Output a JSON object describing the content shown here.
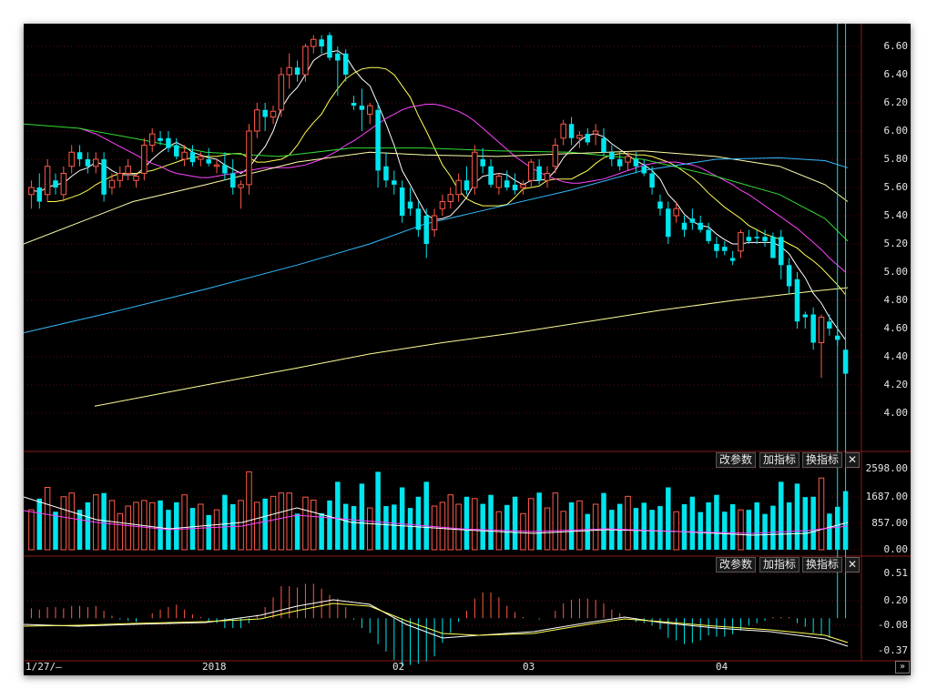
{
  "toolbar": {
    "modify_params": "改参数",
    "add_indicator": "加指标",
    "change_indicator": "换指标",
    "close_symbol": "✕"
  },
  "colors": {
    "up": "#ff5a4a",
    "down": "#00e5ee",
    "ma5": "#ffffff",
    "ma10": "#ffff55",
    "ma20": "#ff44ff",
    "ma30": "#33dd33",
    "ma60": "#ffffaa",
    "ma120": "#33bbff",
    "ma250": "#ffff99"
  },
  "chart_data": [
    {
      "type": "candlestick",
      "price_axis": {
        "ticks": [
          "6.60",
          "6.40",
          "6.20",
          "6.00",
          "5.80",
          "5.60",
          "5.40",
          "5.20",
          "5.00",
          "4.80",
          "4.60",
          "4.40",
          "4.20",
          "4.00"
        ],
        "ylim": [
          3.75,
          6.7
        ]
      },
      "x_labels": [
        "1/27/—",
        "2018",
        "02",
        "03",
        "04"
      ],
      "candles_ohlc": [
        [
          5.55,
          5.65,
          5.45,
          5.6
        ],
        [
          5.6,
          5.7,
          5.45,
          5.5
        ],
        [
          5.55,
          5.8,
          5.5,
          5.75
        ],
        [
          5.65,
          5.7,
          5.55,
          5.6
        ],
        [
          5.55,
          5.75,
          5.5,
          5.7
        ],
        [
          5.75,
          5.9,
          5.7,
          5.85
        ],
        [
          5.85,
          5.9,
          5.75,
          5.8
        ],
        [
          5.8,
          5.85,
          5.7,
          5.75
        ],
        [
          5.75,
          5.85,
          5.7,
          5.8
        ],
        [
          5.8,
          5.85,
          5.5,
          5.55
        ],
        [
          5.6,
          5.7,
          5.55,
          5.65
        ],
        [
          5.65,
          5.75,
          5.6,
          5.7
        ],
        [
          5.7,
          5.8,
          5.65,
          5.75
        ],
        [
          5.65,
          5.7,
          5.6,
          5.68
        ],
        [
          5.7,
          5.95,
          5.65,
          5.9
        ],
        [
          5.9,
          6.02,
          5.85,
          5.98
        ],
        [
          5.95,
          6.0,
          5.9,
          5.93
        ],
        [
          5.95,
          6.0,
          5.85,
          5.88
        ],
        [
          5.9,
          5.95,
          5.8,
          5.82
        ],
        [
          5.8,
          5.9,
          5.75,
          5.85
        ],
        [
          5.85,
          5.9,
          5.75,
          5.78
        ],
        [
          5.8,
          5.85,
          5.75,
          5.82
        ],
        [
          5.8,
          5.88,
          5.75,
          5.77
        ],
        [
          5.75,
          5.8,
          5.7,
          5.76
        ],
        [
          5.76,
          5.85,
          5.65,
          5.7
        ],
        [
          5.7,
          5.8,
          5.55,
          5.6
        ],
        [
          5.6,
          5.65,
          5.45,
          5.62
        ],
        [
          5.62,
          6.05,
          5.55,
          6.0
        ],
        [
          6.0,
          6.2,
          5.95,
          6.15
        ],
        [
          6.15,
          6.2,
          6.0,
          6.1
        ],
        [
          6.1,
          6.18,
          6.05,
          6.14
        ],
        [
          6.15,
          6.45,
          6.1,
          6.4
        ],
        [
          6.4,
          6.55,
          6.3,
          6.45
        ],
        [
          6.45,
          6.5,
          6.35,
          6.4
        ],
        [
          6.4,
          6.62,
          6.35,
          6.6
        ],
        [
          6.6,
          6.68,
          6.55,
          6.65
        ],
        [
          6.65,
          6.68,
          6.55,
          6.6
        ],
        [
          6.68,
          6.7,
          6.5,
          6.52
        ],
        [
          6.55,
          6.6,
          6.25,
          6.5
        ],
        [
          6.55,
          6.58,
          6.35,
          6.4
        ],
        [
          6.2,
          6.25,
          6.15,
          6.18
        ],
        [
          6.18,
          6.3,
          6.0,
          6.15
        ],
        [
          6.12,
          6.2,
          6.05,
          6.18
        ],
        [
          6.15,
          6.2,
          5.6,
          5.72
        ],
        [
          5.75,
          5.85,
          5.6,
          5.65
        ],
        [
          5.65,
          5.72,
          5.55,
          5.62
        ],
        [
          5.6,
          5.65,
          5.35,
          5.4
        ],
        [
          5.5,
          5.6,
          5.4,
          5.45
        ],
        [
          5.45,
          5.5,
          5.25,
          5.3
        ],
        [
          5.4,
          5.45,
          5.1,
          5.2
        ],
        [
          5.3,
          5.45,
          5.25,
          5.4
        ],
        [
          5.45,
          5.55,
          5.4,
          5.5
        ],
        [
          5.5,
          5.6,
          5.45,
          5.55
        ],
        [
          5.55,
          5.7,
          5.5,
          5.65
        ],
        [
          5.65,
          5.75,
          5.55,
          5.58
        ],
        [
          5.6,
          5.9,
          5.55,
          5.85
        ],
        [
          5.8,
          5.88,
          5.7,
          5.75
        ],
        [
          5.75,
          5.8,
          5.6,
          5.62
        ],
        [
          5.6,
          5.7,
          5.55,
          5.68
        ],
        [
          5.65,
          5.72,
          5.58,
          5.6
        ],
        [
          5.62,
          5.7,
          5.55,
          5.58
        ],
        [
          5.6,
          5.65,
          5.55,
          5.62
        ],
        [
          5.65,
          5.8,
          5.6,
          5.78
        ],
        [
          5.75,
          5.8,
          5.62,
          5.65
        ],
        [
          5.65,
          5.75,
          5.6,
          5.7
        ],
        [
          5.75,
          5.95,
          5.7,
          5.9
        ],
        [
          5.95,
          6.08,
          5.9,
          6.05
        ],
        [
          6.05,
          6.1,
          5.9,
          5.95
        ],
        [
          5.95,
          6.0,
          5.88,
          5.97
        ],
        [
          5.98,
          6.02,
          5.9,
          5.92
        ],
        [
          5.98,
          6.05,
          5.9,
          6.0
        ],
        [
          5.95,
          6.02,
          5.82,
          5.85
        ],
        [
          5.85,
          5.9,
          5.75,
          5.8
        ],
        [
          5.8,
          5.85,
          5.72,
          5.75
        ],
        [
          5.78,
          5.85,
          5.72,
          5.82
        ],
        [
          5.8,
          5.85,
          5.7,
          5.75
        ],
        [
          5.75,
          5.8,
          5.68,
          5.7
        ],
        [
          5.7,
          5.75,
          5.55,
          5.6
        ],
        [
          5.5,
          5.55,
          5.4,
          5.45
        ],
        [
          5.45,
          5.5,
          5.2,
          5.25
        ],
        [
          5.4,
          5.5,
          5.35,
          5.45
        ],
        [
          5.35,
          5.4,
          5.25,
          5.3
        ],
        [
          5.38,
          5.45,
          5.3,
          5.35
        ],
        [
          5.35,
          5.4,
          5.28,
          5.3
        ],
        [
          5.3,
          5.35,
          5.2,
          5.22
        ],
        [
          5.2,
          5.25,
          5.1,
          5.15
        ],
        [
          5.18,
          5.22,
          5.12,
          5.15
        ],
        [
          5.1,
          5.15,
          5.05,
          5.08
        ],
        [
          5.15,
          5.3,
          5.1,
          5.28
        ],
        [
          5.25,
          5.3,
          5.2,
          5.22
        ],
        [
          5.25,
          5.3,
          5.2,
          5.24
        ],
        [
          5.25,
          5.3,
          5.18,
          5.22
        ],
        [
          5.25,
          5.28,
          5.15,
          5.1
        ],
        [
          5.25,
          5.3,
          4.95,
          5.05
        ],
        [
          5.05,
          5.1,
          4.85,
          4.9
        ],
        [
          4.95,
          5.0,
          4.6,
          4.65
        ],
        [
          4.7,
          4.72,
          4.6,
          4.68
        ],
        [
          4.7,
          4.75,
          4.45,
          4.5
        ],
        [
          4.5,
          4.7,
          4.25,
          4.68
        ],
        [
          4.65,
          4.7,
          4.55,
          4.6
        ],
        [
          4.55,
          4.62,
          4.48,
          4.52
        ],
        [
          4.45,
          4.5,
          4.25,
          4.28
        ]
      ],
      "moving_averages": {
        "ma5": [
          5.58,
          5.57,
          5.6,
          5.62,
          5.63,
          5.68,
          5.72,
          5.74,
          5.78,
          5.76,
          5.72,
          5.69,
          5.69,
          5.69,
          5.74,
          5.8,
          5.85,
          5.89,
          5.92,
          5.89,
          5.85,
          5.83,
          5.81,
          5.8,
          5.76,
          5.73,
          5.7,
          5.74,
          5.82,
          5.89,
          6.0,
          6.16,
          6.25,
          6.31,
          6.4,
          6.5,
          6.54,
          6.56,
          6.57,
          6.53,
          6.44,
          6.37,
          6.32,
          6.19,
          6.05,
          5.9,
          5.72,
          5.62,
          5.51,
          5.41,
          5.37,
          5.38,
          5.4,
          5.46,
          5.53,
          5.63,
          5.68,
          5.69,
          5.7,
          5.69,
          5.65,
          5.62,
          5.65,
          5.65,
          5.66,
          5.72,
          5.81,
          5.87,
          5.93,
          5.97,
          5.98,
          5.96,
          5.91,
          5.87,
          5.83,
          5.79,
          5.76,
          5.72,
          5.66,
          5.55,
          5.49,
          5.41,
          5.36,
          5.33,
          5.32,
          5.27,
          5.23,
          5.2,
          5.2,
          5.21,
          5.21,
          5.21,
          5.21,
          5.18,
          5.13,
          5.04,
          4.96,
          4.85,
          4.78,
          4.68,
          4.6,
          4.52
        ],
        "ma10": [
          5.5,
          5.5,
          5.51,
          5.53,
          5.55,
          5.58,
          5.62,
          5.65,
          5.68,
          5.7,
          5.7,
          5.7,
          5.71,
          5.72,
          5.74,
          5.76,
          5.78,
          5.8,
          5.81,
          5.82,
          5.82,
          5.82,
          5.83,
          5.84,
          5.84,
          5.81,
          5.78,
          5.78,
          5.79,
          5.8,
          5.83,
          5.9,
          5.99,
          6.06,
          6.12,
          6.22,
          6.3,
          6.37,
          6.41,
          6.44,
          6.45,
          6.45,
          6.44,
          6.4,
          6.32,
          6.24,
          6.11,
          6.0,
          5.88,
          5.76,
          5.68,
          5.58,
          5.52,
          5.49,
          5.47,
          5.47,
          5.47,
          5.48,
          5.53,
          5.59,
          5.6,
          5.61,
          5.65,
          5.66,
          5.66,
          5.66,
          5.69,
          5.72,
          5.77,
          5.81,
          5.83,
          5.84,
          5.84,
          5.83,
          5.83,
          5.82,
          5.8,
          5.78,
          5.75,
          5.71,
          5.67,
          5.62,
          5.56,
          5.51,
          5.46,
          5.42,
          5.38,
          5.33,
          5.3,
          5.27,
          5.25,
          5.23,
          5.2,
          5.17,
          5.12,
          5.08,
          5.03,
          4.97,
          4.91,
          4.84
        ],
        "ma20": [
          6.02,
          6.0,
          5.98,
          5.95,
          5.92,
          5.89,
          5.86,
          5.83,
          5.8,
          5.77,
          5.75,
          5.72,
          5.7,
          5.69,
          5.68,
          5.67,
          5.67,
          5.68,
          5.69,
          5.7,
          5.71,
          5.72,
          5.73,
          5.74,
          5.74,
          5.74,
          5.74,
          5.75,
          5.76,
          5.78,
          5.8,
          5.83,
          5.86,
          5.9,
          5.93,
          5.97,
          6.01,
          6.05,
          6.09,
          6.12,
          6.15,
          6.17,
          6.18,
          6.19,
          6.19,
          6.18,
          6.16,
          6.14,
          6.11,
          6.07,
          6.02,
          5.97,
          5.92,
          5.87,
          5.82,
          5.78,
          5.74,
          5.71,
          5.68,
          5.66,
          5.64,
          5.63,
          5.63,
          5.64,
          5.65,
          5.66,
          5.68,
          5.7,
          5.72,
          5.74,
          5.76,
          5.77,
          5.78,
          5.78,
          5.78,
          5.77,
          5.76,
          5.74,
          5.71,
          5.68,
          5.65,
          5.62,
          5.58,
          5.55,
          5.51,
          5.47,
          5.43,
          5.39,
          5.35,
          5.31,
          5.26,
          5.21,
          5.16,
          5.1,
          5.05,
          5.0
        ]
      },
      "bands_note": ""
    },
    {
      "type": "volume",
      "y_ticks": [
        "2598.00",
        "1687.00",
        "857.00",
        "0.00"
      ]
    },
    {
      "type": "macd",
      "y_ticks": [
        "0.51",
        "0.20",
        "-0.08",
        "-0.37"
      ]
    }
  ]
}
